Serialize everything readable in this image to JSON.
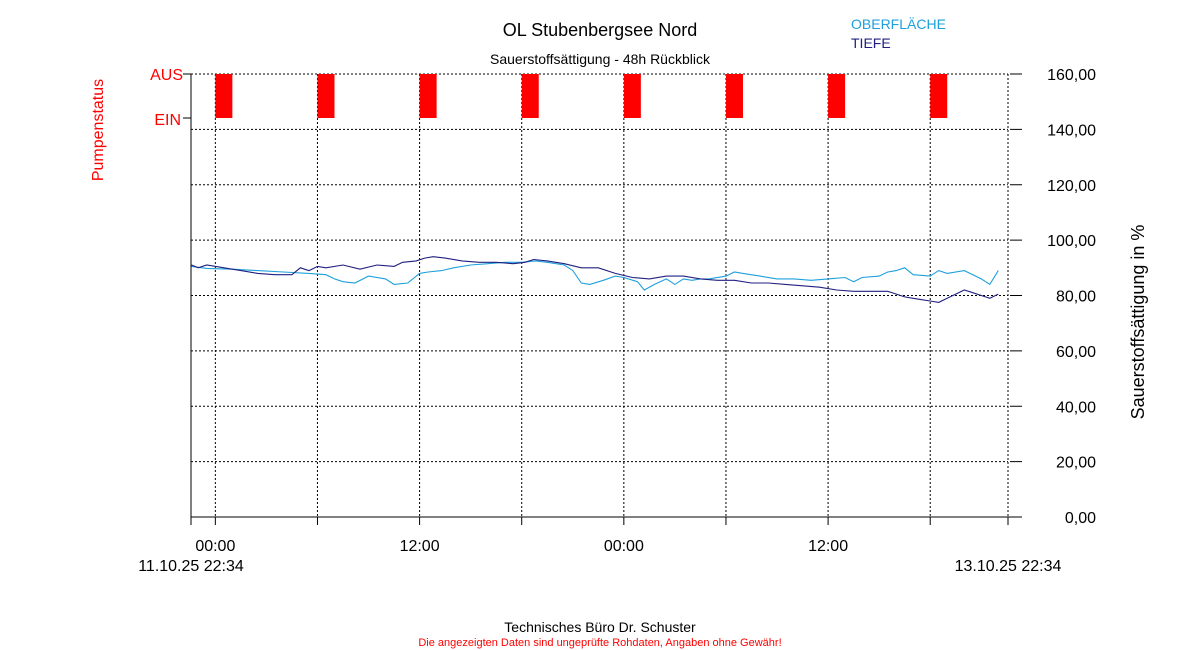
{
  "footer": {
    "credit": "Technisches Büro Dr. Schuster",
    "disclaimer": "Die angezeigten Daten sind ungeprüfte Rohdaten, Angaben ohne Gewähr!"
  },
  "colors": {
    "oberflaeche": "#1ea0dc",
    "tiefe": "#202080",
    "pump": "#ff0000",
    "grid": "#000000"
  },
  "chart_data": {
    "type": "line",
    "title": "OL Stubenbergsee Nord",
    "subtitle": "Sauerstoffsättigung - 48h Rückblick",
    "ylabel": "Sauerstoffsättigung in %",
    "ylim": [
      0,
      160
    ],
    "yticks": [
      "0,00",
      "20,00",
      "40,00",
      "60,00",
      "80,00",
      "100,00",
      "120,00",
      "140,00",
      "160,00"
    ],
    "xlim_hours": [
      -1.43,
      46.57
    ],
    "xticks": [
      {
        "h": 0,
        "label": "00:00"
      },
      {
        "h": 6,
        "label": ""
      },
      {
        "h": 12,
        "label": "12:00"
      },
      {
        "h": 18,
        "label": ""
      },
      {
        "h": 24,
        "label": "00:00"
      },
      {
        "h": 30,
        "label": ""
      },
      {
        "h": 36,
        "label": "12:00"
      },
      {
        "h": 42,
        "label": ""
      }
    ],
    "x_start_label": "11.10.25 22:34",
    "x_end_label": "13.10.25 22:34",
    "grid": true,
    "legend_position": "top-right",
    "pump": {
      "axis_label": "Pumpenstatus",
      "state_on": "EIN",
      "state_off": "AUS",
      "off_intervals_hours": [
        [
          0,
          1
        ],
        [
          6,
          7
        ],
        [
          12,
          13
        ],
        [
          18,
          19
        ],
        [
          24,
          25
        ],
        [
          30,
          31
        ],
        [
          36,
          37
        ],
        [
          42,
          43
        ]
      ]
    },
    "series": [
      {
        "name": "OBERFLÄCHE",
        "color": "#1ea0dc",
        "points": [
          [
            -1.4,
            90.5
          ],
          [
            -0.5,
            89.8
          ],
          [
            1,
            89.5
          ],
          [
            2.5,
            89
          ],
          [
            4,
            88.5
          ],
          [
            5.5,
            88
          ],
          [
            6.5,
            87.5
          ],
          [
            7,
            86
          ],
          [
            7.5,
            85
          ],
          [
            8.2,
            84.5
          ],
          [
            9,
            87
          ],
          [
            10,
            86
          ],
          [
            10.5,
            84
          ],
          [
            11.3,
            84.5
          ],
          [
            12,
            88
          ],
          [
            12.5,
            88.5
          ],
          [
            13.3,
            89
          ],
          [
            14,
            90
          ],
          [
            15,
            91
          ],
          [
            16,
            91.5
          ],
          [
            17,
            92
          ],
          [
            18,
            92
          ],
          [
            18.8,
            92.5
          ],
          [
            19.5,
            92
          ],
          [
            20.5,
            91
          ],
          [
            21,
            89
          ],
          [
            21.5,
            84.5
          ],
          [
            22,
            84
          ],
          [
            22.8,
            85.5
          ],
          [
            23.5,
            87
          ],
          [
            24,
            86.5
          ],
          [
            24.8,
            85
          ],
          [
            25.2,
            82
          ],
          [
            25.8,
            84
          ],
          [
            26.5,
            86
          ],
          [
            27,
            84
          ],
          [
            27.5,
            86
          ],
          [
            28,
            85.5
          ],
          [
            28.5,
            86
          ],
          [
            29,
            86
          ],
          [
            30,
            87
          ],
          [
            30.5,
            88.5
          ],
          [
            31,
            88
          ],
          [
            32,
            87
          ],
          [
            33,
            86
          ],
          [
            34,
            86
          ],
          [
            35,
            85.5
          ],
          [
            36,
            86
          ],
          [
            37,
            86.5
          ],
          [
            37.5,
            85
          ],
          [
            38,
            86.5
          ],
          [
            39,
            87
          ],
          [
            39.5,
            88.5
          ],
          [
            40,
            89
          ],
          [
            40.5,
            90
          ],
          [
            41,
            87.5
          ],
          [
            42,
            87
          ],
          [
            42.5,
            89
          ],
          [
            43,
            88
          ],
          [
            44,
            89
          ],
          [
            44.5,
            87.5
          ],
          [
            45,
            86
          ],
          [
            45.5,
            84
          ],
          [
            46,
            89
          ]
        ]
      },
      {
        "name": "TIEFE",
        "color": "#202080",
        "points": [
          [
            -1.4,
            91
          ],
          [
            -1,
            90
          ],
          [
            -0.5,
            91
          ],
          [
            0.5,
            90
          ],
          [
            1.5,
            89
          ],
          [
            2.5,
            88
          ],
          [
            3.5,
            87.5
          ],
          [
            4.5,
            87.5
          ],
          [
            5,
            90
          ],
          [
            5.5,
            89
          ],
          [
            6,
            90.5
          ],
          [
            6.5,
            90
          ],
          [
            7.5,
            91
          ],
          [
            8.5,
            89.5
          ],
          [
            9.5,
            91
          ],
          [
            10.5,
            90.5
          ],
          [
            11,
            92
          ],
          [
            11.8,
            92.5
          ],
          [
            12.3,
            93.5
          ],
          [
            12.8,
            94
          ],
          [
            13.5,
            93.5
          ],
          [
            14.5,
            92.5
          ],
          [
            15.5,
            92
          ],
          [
            16.5,
            92
          ],
          [
            17.5,
            91.5
          ],
          [
            18.2,
            92
          ],
          [
            18.7,
            93
          ],
          [
            19.5,
            92.5
          ],
          [
            20.5,
            91.5
          ],
          [
            21.5,
            90
          ],
          [
            22.5,
            90
          ],
          [
            23.5,
            88
          ],
          [
            24.5,
            86.5
          ],
          [
            25.5,
            86
          ],
          [
            26.5,
            87
          ],
          [
            27.5,
            87
          ],
          [
            28.5,
            86
          ],
          [
            29.5,
            85.5
          ],
          [
            30.5,
            85.5
          ],
          [
            31.5,
            84.5
          ],
          [
            32.5,
            84.5
          ],
          [
            33.5,
            84
          ],
          [
            34.5,
            83.5
          ],
          [
            35.5,
            83
          ],
          [
            36.5,
            82
          ],
          [
            37.5,
            81.5
          ],
          [
            38.5,
            81.5
          ],
          [
            39.5,
            81.5
          ],
          [
            40.5,
            79.5
          ],
          [
            41,
            79
          ],
          [
            41.5,
            78.5
          ],
          [
            42,
            78
          ],
          [
            42.5,
            77.5
          ],
          [
            43,
            79
          ],
          [
            43.5,
            80.5
          ],
          [
            44,
            82
          ],
          [
            44.5,
            81
          ],
          [
            45,
            80
          ],
          [
            45.5,
            79
          ],
          [
            46,
            80.5
          ]
        ]
      }
    ]
  }
}
